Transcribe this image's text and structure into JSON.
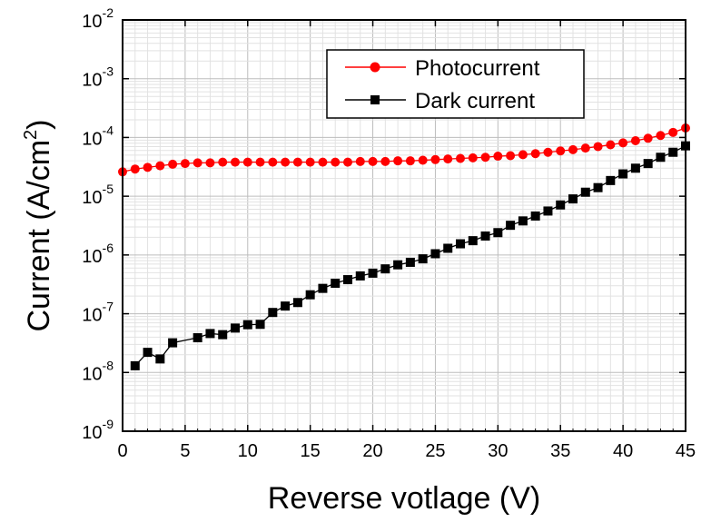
{
  "chart_data": {
    "type": "line",
    "xlabel": "Reverse votlage (V)",
    "ylabel_main": "Current (A/cm",
    "ylabel_sup": "2",
    "ylabel_end": ")",
    "xlim": [
      0,
      45
    ],
    "ylim": [
      1e-09,
      0.01
    ],
    "yscale": "log",
    "grid": true,
    "legend_position": "top-right",
    "x_ticks": [
      0,
      5,
      10,
      15,
      20,
      25,
      30,
      35,
      40,
      45
    ],
    "y_ticks": [
      {
        "value": 1e-09,
        "base": "10",
        "exp": "-9"
      },
      {
        "value": 1e-08,
        "base": "10",
        "exp": "-8"
      },
      {
        "value": 1e-07,
        "base": "10",
        "exp": "-7"
      },
      {
        "value": 1e-06,
        "base": "10",
        "exp": "-6"
      },
      {
        "value": 1e-05,
        "base": "10",
        "exp": "-5"
      },
      {
        "value": 0.0001,
        "base": "10",
        "exp": "-4"
      },
      {
        "value": 0.001,
        "base": "10",
        "exp": "-3"
      },
      {
        "value": 0.01,
        "base": "10",
        "exp": "-2"
      }
    ],
    "series": [
      {
        "name": "Photocurrent",
        "color": "#ff0000",
        "marker": "circle",
        "x": [
          0,
          1,
          2,
          3,
          4,
          5,
          6,
          7,
          8,
          9,
          10,
          11,
          12,
          13,
          14,
          15,
          16,
          17,
          18,
          19,
          20,
          21,
          22,
          23,
          24,
          25,
          26,
          27,
          28,
          29,
          30,
          31,
          32,
          33,
          34,
          35,
          36,
          37,
          38,
          39,
          40,
          41,
          42,
          43,
          44,
          45
        ],
        "y": [
          2.6e-05,
          2.9e-05,
          3.1e-05,
          3.3e-05,
          3.5e-05,
          3.6e-05,
          3.7e-05,
          3.7e-05,
          3.8e-05,
          3.8e-05,
          3.8e-05,
          3.8e-05,
          3.8e-05,
          3.8e-05,
          3.8e-05,
          3.8e-05,
          3.8e-05,
          3.8e-05,
          3.8e-05,
          3.9e-05,
          3.9e-05,
          3.9e-05,
          4e-05,
          4e-05,
          4.1e-05,
          4.2e-05,
          4.3e-05,
          4.4e-05,
          4.5e-05,
          4.6e-05,
          4.8e-05,
          4.9e-05,
          5.1e-05,
          5.3e-05,
          5.6e-05,
          5.9e-05,
          6.2e-05,
          6.6e-05,
          7e-05,
          7.5e-05,
          8.1e-05,
          8.8e-05,
          9.7e-05,
          0.000108,
          0.000122,
          0.000145
        ]
      },
      {
        "name": "Dark current",
        "color": "#000000",
        "marker": "square",
        "x": [
          1,
          2,
          3,
          4,
          6,
          7,
          8,
          9,
          10,
          11,
          12,
          13,
          14,
          15,
          16,
          17,
          18,
          19,
          20,
          21,
          22,
          23,
          24,
          25,
          26,
          27,
          28,
          29,
          30,
          31,
          32,
          33,
          34,
          35,
          36,
          37,
          38,
          39,
          40,
          41,
          42,
          43,
          44,
          45
        ],
        "y": [
          1.3e-08,
          2.2e-08,
          1.7e-08,
          3.2e-08,
          3.9e-08,
          4.6e-08,
          4.4e-08,
          5.7e-08,
          6.5e-08,
          6.6e-08,
          1.05e-07,
          1.35e-07,
          1.55e-07,
          2.1e-07,
          2.7e-07,
          3.3e-07,
          3.8e-07,
          4.4e-07,
          4.9e-07,
          5.8e-07,
          6.8e-07,
          7.5e-07,
          8.6e-07,
          1.05e-06,
          1.3e-06,
          1.55e-06,
          1.75e-06,
          2.1e-06,
          2.4e-06,
          3.2e-06,
          3.8e-06,
          4.6e-06,
          5.6e-06,
          7.1e-06,
          9e-06,
          1.17e-05,
          1.4e-05,
          1.85e-05,
          2.4e-05,
          3e-05,
          3.6e-05,
          4.6e-05,
          5.6e-05,
          7.2e-05
        ]
      }
    ]
  }
}
